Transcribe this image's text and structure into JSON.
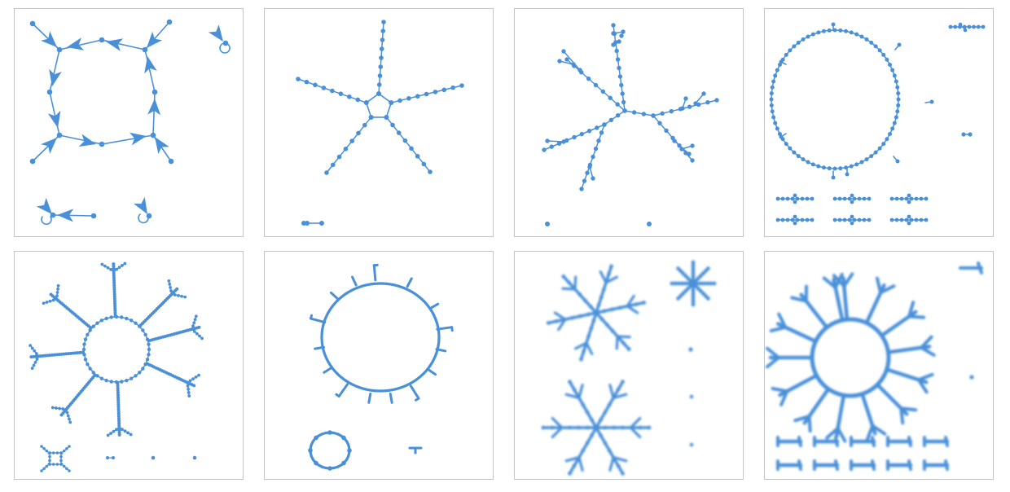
{
  "figure": {
    "columns": 4,
    "rows": 2,
    "colors": {
      "edge": "#4a90d9",
      "node": "#4a90d9",
      "border": "#c4c4c4",
      "background": "#ffffff"
    },
    "panels": [
      {
        "id": "p1",
        "description_kind": "directed-cycle-with-arrows"
      },
      {
        "id": "p2",
        "description_kind": "pentagon-star"
      },
      {
        "id": "p3",
        "description_kind": "tree-star"
      },
      {
        "id": "p4",
        "description_kind": "large-ring-with-components"
      },
      {
        "id": "p5",
        "description_kind": "octagon-star-with-forks"
      },
      {
        "id": "p6",
        "description_kind": "ring-with-short-spokes"
      },
      {
        "id": "p7",
        "description_kind": "blurry-snowflakes"
      },
      {
        "id": "p8",
        "description_kind": "blurry-ring-star-with-components"
      }
    ]
  }
}
